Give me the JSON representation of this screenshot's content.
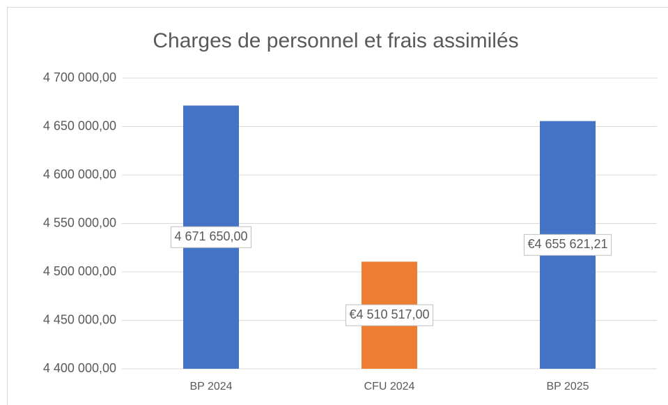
{
  "chart_data": {
    "type": "bar",
    "title": "Charges de personnel et frais assimilés",
    "categories": [
      "BP 2024",
      "CFU 2024",
      "BP 2025"
    ],
    "values": [
      4671650,
      4510517,
      4655621.21
    ],
    "value_labels": [
      "4 671 650,00",
      "€4 510 517,00",
      "€4 655 621,21"
    ],
    "colors": [
      "#4472c4",
      "#ed7d31",
      "#4472c4"
    ],
    "ylim": [
      4400000,
      4700000
    ],
    "yticks": [
      {
        "value": 4400000,
        "label": "4 400 000,00"
      },
      {
        "value": 4450000,
        "label": "4 450 000,00"
      },
      {
        "value": 4500000,
        "label": "4 500 000,00"
      },
      {
        "value": 4550000,
        "label": "4 550 000,00"
      },
      {
        "value": 4600000,
        "label": "4 600 000,00"
      },
      {
        "value": 4650000,
        "label": "4 650 000,00"
      },
      {
        "value": 4700000,
        "label": "4 700 000,00"
      }
    ],
    "grid": true
  }
}
